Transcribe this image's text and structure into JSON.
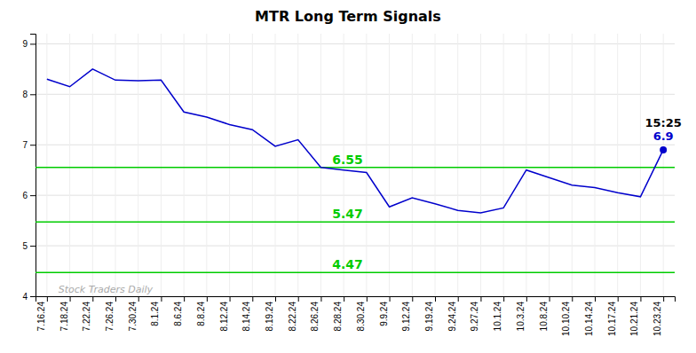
{
  "chart_data": {
    "type": "line",
    "title": "MTR Long Term Signals",
    "categories": [
      "7.16.24",
      "7.18.24",
      "7.22.24",
      "7.26.24",
      "7.30.24",
      "8.1.24",
      "8.6.24",
      "8.8.24",
      "8.12.24",
      "8.14.24",
      "8.19.24",
      "8.22.24",
      "8.26.24",
      "8.28.24",
      "8.30.24",
      "9.9.24",
      "9.12.24",
      "9.19.24",
      "9.24.24",
      "9.27.24",
      "10.1.24",
      "10.3.24",
      "10.8.24",
      "10.10.24",
      "10.14.24",
      "10.17.24",
      "10.21.24",
      "10.23.24"
    ],
    "values": [
      8.3,
      8.15,
      8.5,
      8.28,
      8.27,
      8.28,
      7.65,
      7.55,
      7.4,
      7.3,
      6.97,
      7.1,
      6.55,
      6.5,
      6.45,
      5.77,
      5.95,
      5.83,
      5.7,
      5.65,
      5.75,
      6.5,
      6.35,
      6.2,
      6.15,
      6.05,
      5.97,
      6.9
    ],
    "color": "#0000cc",
    "reference_lines": [
      {
        "value": 6.55,
        "label": "6.55",
        "color": "#00cc00"
      },
      {
        "value": 5.47,
        "label": "5.47",
        "color": "#00cc00"
      },
      {
        "value": 4.47,
        "label": "4.47",
        "color": "#00cc00"
      }
    ],
    "annotations": [
      {
        "text": "15:25",
        "x": "10.23.24",
        "y": 6.9,
        "color": "#000000"
      },
      {
        "text": "6.9",
        "x": "10.23.24",
        "y": 6.9,
        "color": "#0000cc"
      }
    ],
    "watermark": {
      "text": "Stock Traders Daily",
      "color": "#aaaaaa"
    },
    "ylim": [
      4.0,
      9.2
    ],
    "yticks": [
      4,
      5,
      6,
      7,
      8,
      9
    ],
    "grid": true
  }
}
